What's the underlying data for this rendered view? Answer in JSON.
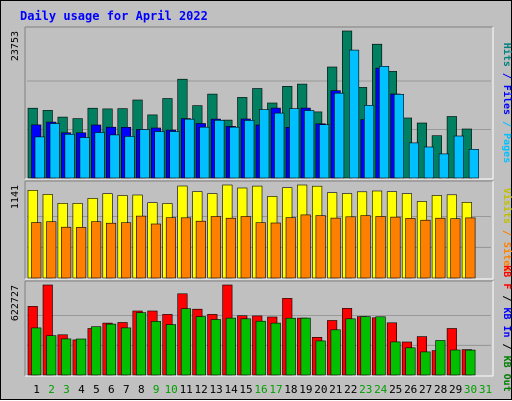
{
  "chart_data": {
    "type": "bar",
    "title": "Daily usage for April 2022",
    "categories": [
      "1",
      "2",
      "3",
      "4",
      "5",
      "6",
      "7",
      "8",
      "9",
      "10",
      "11",
      "12",
      "13",
      "14",
      "15",
      "16",
      "17",
      "18",
      "19",
      "20",
      "21",
      "22",
      "23",
      "24",
      "25",
      "26",
      "27",
      "28",
      "29",
      "30",
      "31"
    ],
    "weekend_days": [
      "2",
      "3",
      "9",
      "10",
      "16",
      "17",
      "23",
      "24",
      "30",
      "31"
    ],
    "panels": [
      {
        "name": "pages-files-hits",
        "max_label": "23753",
        "ymax": 23753,
        "right_labels": [
          {
            "text": "Hits",
            "color": "#008080"
          },
          {
            "text": "Files",
            "color": "#0000ff"
          },
          {
            "text": "Pages",
            "color": "#00c0ff"
          }
        ],
        "series": [
          {
            "name": "Hits",
            "color": "#008060",
            "values": [
              11280,
              10920,
              9840,
              9600,
              11280,
              11160,
              11220,
              12600,
              10200,
              12840,
              15960,
              11700,
              13560,
              9360,
              13020,
              14460,
              12120,
              14820,
              15180,
              10680,
              17940,
              23753,
              14640,
              21620,
              17220,
              9690,
              8880,
              6840,
              9930,
              7910,
              null
            ]
          },
          {
            "name": "Files",
            "color": "#0000ff",
            "values": [
              8580,
              9030,
              7300,
              7300,
              8560,
              8210,
              8200,
              7840,
              8080,
              7740,
              9600,
              8810,
              9510,
              8330,
              9540,
              8560,
              11300,
              8200,
              11300,
              8750,
              14100,
              null,
              9440,
              17740,
              13580,
              null,
              null,
              null,
              null,
              null,
              null
            ]
          },
          {
            "name": "Pages",
            "color": "#00c0ff",
            "values": [
              6640,
              8810,
              7060,
              6540,
              7350,
              6960,
              6720,
              7830,
              7520,
              7520,
              9500,
              8210,
              9320,
              8210,
              9310,
              11070,
              10480,
              11220,
              10900,
              8620,
              13700,
              20670,
              11750,
              18050,
              13520,
              5670,
              5010,
              3890,
              6790,
              4630,
              null
            ]
          }
        ]
      },
      {
        "name": "visits-sites",
        "max_label": "1141",
        "ymax": 1141,
        "right_labels": [
          {
            "text": "Visits",
            "color": "#c0c000"
          },
          {
            "text": "Sites",
            "color": "#ff8000"
          }
        ],
        "series": [
          {
            "name": "Visits",
            "color": "#ffff00",
            "values": [
              1076,
              1026,
              917,
              915,
              977,
              1034,
              1012,
              1018,
              924,
              914,
              1129,
              1060,
              1035,
              1141,
              1104,
              1127,
              1001,
              1108,
              1141,
              1126,
              1047,
              1035,
              1058,
              1068,
              1059,
              1034,
              939,
              1012,
              1021,
              927,
              null
            ]
          },
          {
            "name": "Sites",
            "color": "#ff8000",
            "values": [
              681,
              691,
              623,
              621,
              691,
              672,
              679,
              760,
              662,
              740,
              738,
              697,
              755,
              734,
              754,
              679,
              675,
              741,
              774,
              766,
              735,
              751,
              765,
              755,
              747,
              731,
              709,
              734,
              728,
              737,
              null
            ]
          }
        ]
      },
      {
        "name": "kb",
        "max_label": "622727",
        "ymax": 622727,
        "right_labels": [
          {
            "text": "KB F",
            "color": "#ff0000"
          },
          {
            "text": "/",
            "color": "#000000"
          },
          {
            "text": "KB In",
            "color": "#0000ff"
          },
          {
            "text": "/",
            "color": "#000000"
          },
          {
            "text": "KB Out",
            "color": "#008000"
          }
        ],
        "series": [
          {
            "name": "KB F",
            "color": "#ff0000",
            "values": [
              475000,
              622727,
              278000,
              243000,
              322000,
              359000,
              363000,
              443000,
              443000,
              419000,
              562000,
              455000,
              419000,
              622727,
              410000,
              409000,
              401000,
              530000,
              394000,
              261000,
              377000,
              461000,
              404000,
              396000,
              361000,
              228000,
              266000,
              169000,
              322000,
              176000,
              null
            ]
          },
          {
            "name": "KB Out",
            "color": "#00c000",
            "values": [
              326000,
              272000,
              250000,
              249000,
              334000,
              352000,
              326000,
              431000,
              371000,
              349000,
              459000,
              404000,
              384000,
              394000,
              389000,
              372000,
              359000,
              393000,
              394000,
              236000,
              313000,
              389000,
              404000,
              403000,
              229000,
              188000,
              160000,
              239000,
              173000,
              172000,
              null
            ]
          }
        ]
      }
    ]
  }
}
